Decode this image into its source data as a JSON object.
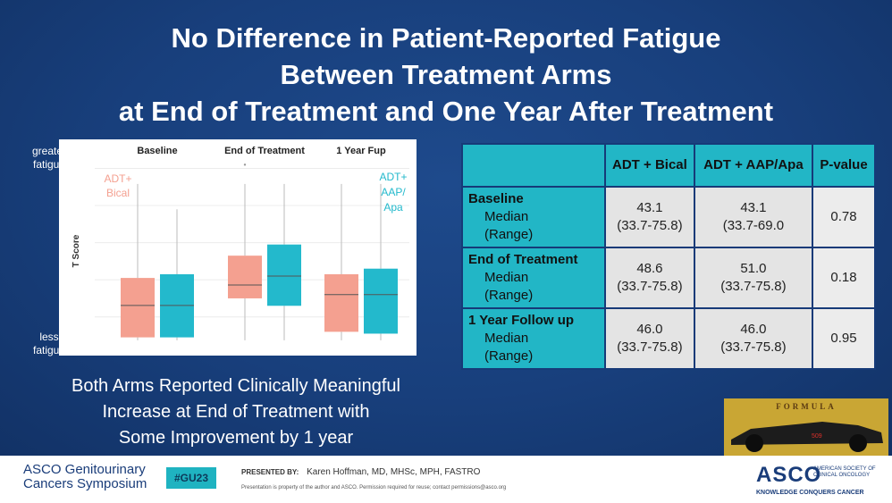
{
  "slide": {
    "title_lines": [
      "No Difference in Patient-Reported Fatigue",
      "Between Treatment Arms",
      "at End of Treatment and One Year After Treatment"
    ],
    "caption_lines": [
      "Both Arms Reported Clinically Meaningful",
      "Increase at End of Treatment with",
      "Some Improvement by 1 year"
    ],
    "left_label_top": [
      "greater",
      "fatigue"
    ],
    "left_label_bottom": [
      "less",
      "fatigue"
    ]
  },
  "chart_data": {
    "type": "boxplot",
    "ylabel": "T Score",
    "categories": [
      "Baseline",
      "End of Treatment",
      "1 Year Fup"
    ],
    "series": [
      {
        "name": "ADT+ Bical",
        "label_lines": [
          "ADT+",
          "Bical"
        ],
        "color": "#f4a090",
        "boxes": [
          {
            "whisker_low": 33.7,
            "q1": 34.5,
            "median": 43.1,
            "q3": 50.5,
            "whisker_high": 75.8
          },
          {
            "whisker_low": 33.7,
            "q1": 45.0,
            "median": 48.6,
            "q3": 56.5,
            "whisker_high": 75.8,
            "outlier": 81
          },
          {
            "whisker_low": 33.7,
            "q1": 36.0,
            "median": 46.0,
            "q3": 51.5,
            "whisker_high": 75.8
          }
        ]
      },
      {
        "name": "ADT+ AAP/ Apa",
        "label_lines": [
          "ADT+",
          "AAP/",
          "Apa"
        ],
        "color": "#23b9cc",
        "boxes": [
          {
            "whisker_low": 33.7,
            "q1": 34.5,
            "median": 43.1,
            "q3": 51.5,
            "whisker_high": 69.0
          },
          {
            "whisker_low": 33.7,
            "q1": 43.0,
            "median": 51.0,
            "q3": 59.5,
            "whisker_high": 75.8
          },
          {
            "whisker_low": 33.7,
            "q1": 35.5,
            "median": 46.0,
            "q3": 53.0,
            "whisker_high": 75.8
          }
        ]
      }
    ],
    "ylim": [
      32,
      83
    ]
  },
  "table": {
    "headers": [
      "",
      "ADT + Bical",
      "ADT + AAP/Apa",
      "P-value"
    ],
    "rows": [
      {
        "label": "Baseline",
        "sub1": "Median",
        "sub2": "(Range)",
        "c1_median": "43.1",
        "c1_range": "(33.7-75.8)",
        "c2_median": "43.1",
        "c2_range": "(33.7-69.0",
        "p": "0.78"
      },
      {
        "label": "End of Treatment",
        "sub1": "Median",
        "sub2": "(Range)",
        "c1_median": "48.6",
        "c1_range": "(33.7-75.8)",
        "c2_median": "51.0",
        "c2_range": "(33.7-75.8)",
        "p": "0.18"
      },
      {
        "label": "1 Year Follow up",
        "sub1": "Median",
        "sub2": "(Range)",
        "c1_median": "46.0",
        "c1_range": "(33.7-75.8)",
        "c2_median": "46.0",
        "c2_range": "(33.7-75.8)",
        "p": "0.95"
      }
    ]
  },
  "image_text": {
    "car_brand": "FORMULA",
    "car_number": "509"
  },
  "footer": {
    "org_line1": "ASCO Genitourinary",
    "org_line2": "Cancers Symposium",
    "hashtag": "#GU23",
    "presented_by_label": "PRESENTED BY:",
    "presenter": "Karen Hoffman, MD, MHSc, MPH, FASTRO",
    "disclaimer": "Presentation is property of the author and ASCO. Permission required for reuse; contact permissions@asco.org",
    "asco": "ASCO",
    "asco_sub": "AMERICAN SOCIETY OF CLINICAL ONCOLOGY",
    "asco_tagline": "KNOWLEDGE CONQUERS CANCER"
  }
}
